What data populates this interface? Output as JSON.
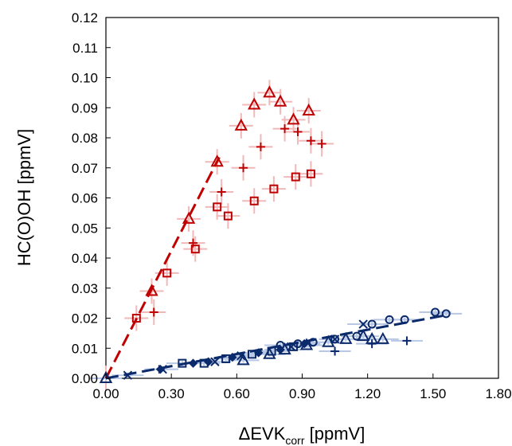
{
  "chart_data": {
    "type": "scatter",
    "title": "",
    "xlabel": {
      "main": "ΔEVK",
      "sub": "corr",
      "unit": " [ppmV]"
    },
    "ylabel": "HC(O)OH [ppmV]",
    "xlim": [
      0,
      1.8
    ],
    "ylim": [
      0,
      0.12
    ],
    "x_ticks": [
      "0.00",
      "0.30",
      "0.60",
      "0.90",
      "1.20",
      "1.50",
      "1.80"
    ],
    "y_ticks": [
      "0.00",
      "0.01",
      "0.02",
      "0.03",
      "0.04",
      "0.05",
      "0.06",
      "0.07",
      "0.08",
      "0.09",
      "0.10",
      "0.11",
      "0.12"
    ],
    "grid": false,
    "legend": "none",
    "colors": {
      "red": "#c00000",
      "red_err": "#f0b8b8",
      "blue": "#0b2a6b",
      "blue_err": "#b8c8e4"
    },
    "series": [
      {
        "group": "red",
        "marker": "triangle",
        "x": [
          0.0,
          0.21,
          0.38,
          0.51,
          0.62,
          0.68,
          0.75,
          0.8,
          0.86,
          0.93
        ],
        "y": [
          0.0,
          0.029,
          0.053,
          0.072,
          0.084,
          0.091,
          0.095,
          0.092,
          0.086,
          0.089
        ]
      },
      {
        "group": "red",
        "marker": "plus",
        "x": [
          0.22,
          0.4,
          0.53,
          0.63,
          0.71,
          0.82,
          0.88,
          0.94,
          0.99
        ],
        "y": [
          0.022,
          0.045,
          0.062,
          0.07,
          0.077,
          0.083,
          0.082,
          0.079,
          0.078
        ]
      },
      {
        "group": "red",
        "marker": "square",
        "x": [
          0.14,
          0.28,
          0.41,
          0.51,
          0.56,
          0.68,
          0.77,
          0.87,
          0.94
        ],
        "y": [
          0.02,
          0.035,
          0.043,
          0.057,
          0.054,
          0.059,
          0.063,
          0.067,
          0.068
        ]
      },
      {
        "group": "blue",
        "marker": "diamond",
        "x": [
          0.25,
          0.4,
          0.47,
          0.58,
          0.7,
          0.8,
          0.91
        ],
        "y": [
          0.003,
          0.005,
          0.0055,
          0.007,
          0.0085,
          0.0095,
          0.0115
        ]
      },
      {
        "group": "blue",
        "marker": "cross",
        "x": [
          0.1,
          0.26,
          0.5,
          0.62,
          0.85,
          1.05,
          1.18
        ],
        "y": [
          0.001,
          0.003,
          0.0055,
          0.0075,
          0.0105,
          0.013,
          0.018
        ]
      },
      {
        "group": "blue",
        "marker": "square",
        "x": [
          0.35,
          0.45,
          0.55,
          0.67,
          0.76,
          0.86
        ],
        "y": [
          0.005,
          0.005,
          0.0065,
          0.008,
          0.009,
          0.0105
        ]
      },
      {
        "group": "blue",
        "marker": "triangle",
        "x": [
          0.0,
          0.63,
          0.75,
          0.82,
          0.92,
          1.02,
          1.1,
          1.18,
          1.22,
          1.27
        ],
        "y": [
          0.0,
          0.006,
          0.008,
          0.0095,
          0.011,
          0.012,
          0.013,
          0.014,
          0.013,
          0.013
        ]
      },
      {
        "group": "blue",
        "marker": "circle",
        "x": [
          0.8,
          0.88,
          0.95,
          1.05,
          1.15,
          1.22,
          1.3,
          1.37,
          1.51,
          1.56
        ],
        "y": [
          0.011,
          0.0115,
          0.012,
          0.013,
          0.014,
          0.018,
          0.0195,
          0.0195,
          0.022,
          0.0215
        ]
      },
      {
        "group": "blue",
        "marker": "plus",
        "x": [
          1.05,
          1.22,
          1.38
        ],
        "y": [
          0.009,
          0.0115,
          0.0125
        ]
      }
    ],
    "fit_lines": [
      {
        "group": "red",
        "x": [
          0.0,
          0.52
        ],
        "y": [
          0.0,
          0.0735
        ]
      },
      {
        "group": "blue",
        "x": [
          0.0,
          1.56
        ],
        "y": [
          0.0,
          0.021
        ]
      }
    ]
  }
}
